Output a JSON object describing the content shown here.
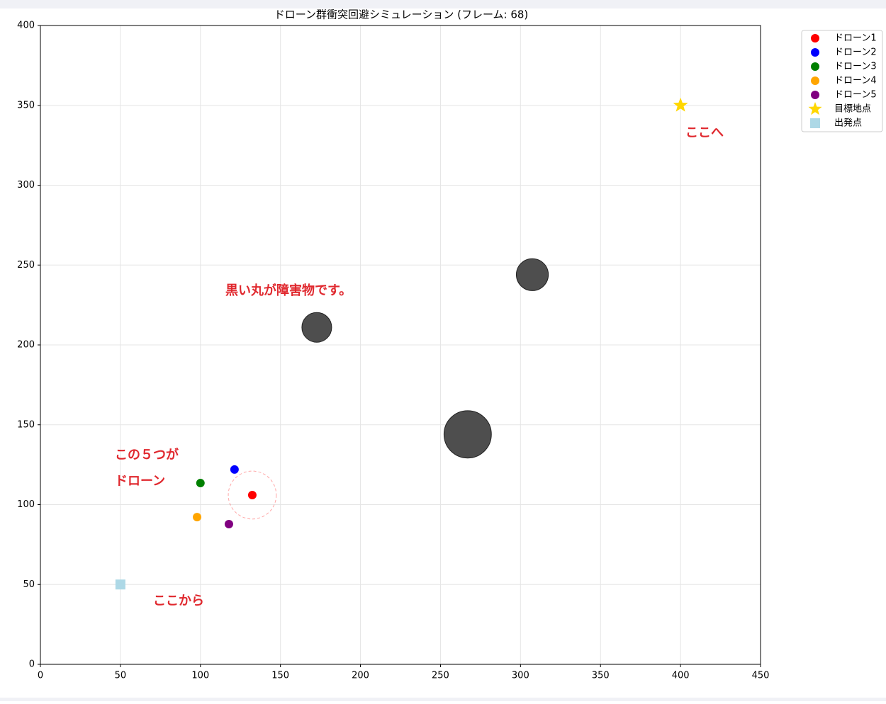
{
  "chart_data": {
    "type": "scatter",
    "title": "ドローン群衝突回避シミュレーション (フレーム: 68)",
    "xlim": [
      0,
      450
    ],
    "ylim": [
      0,
      400
    ],
    "xticks": [
      0,
      50,
      100,
      150,
      200,
      250,
      300,
      350,
      400,
      450
    ],
    "yticks": [
      0,
      50,
      100,
      150,
      200,
      250,
      300,
      350,
      400
    ],
    "grid": true,
    "legend": "outside upper right",
    "series": [
      {
        "name": "ドローン1",
        "color": "#ff0000",
        "x": [
          132.4
        ],
        "y": [
          106
        ]
      },
      {
        "name": "ドローン2",
        "color": "#0000ff",
        "x": [
          121.3
        ],
        "y": [
          122
        ]
      },
      {
        "name": "ドローン3",
        "color": "#008000",
        "x": [
          100
        ],
        "y": [
          113.5
        ]
      },
      {
        "name": "ドローン4",
        "color": "#ffa500",
        "x": [
          97.9
        ],
        "y": [
          92.2
        ]
      },
      {
        "name": "ドローン5",
        "color": "#800080",
        "x": [
          117.8
        ],
        "y": [
          87.8
        ]
      },
      {
        "name": "目標地点",
        "color": "#ffd700",
        "marker": "star",
        "x": [
          400
        ],
        "y": [
          350
        ]
      },
      {
        "name": "出発点",
        "color": "#add8e6",
        "marker": "square",
        "x": [
          50
        ],
        "y": [
          50
        ]
      }
    ],
    "safety_radius": 15,
    "obstacles": {
      "color": "#444444",
      "x": [
        172.7,
        307.4,
        267
      ],
      "y": [
        211,
        244,
        144
      ],
      "radius": [
        9.3,
        10,
        14.8
      ]
    },
    "annotations": [
      "ここへ",
      "黒い丸が障害物です。",
      "この５つが",
      "ドローン",
      "ここから"
    ]
  }
}
